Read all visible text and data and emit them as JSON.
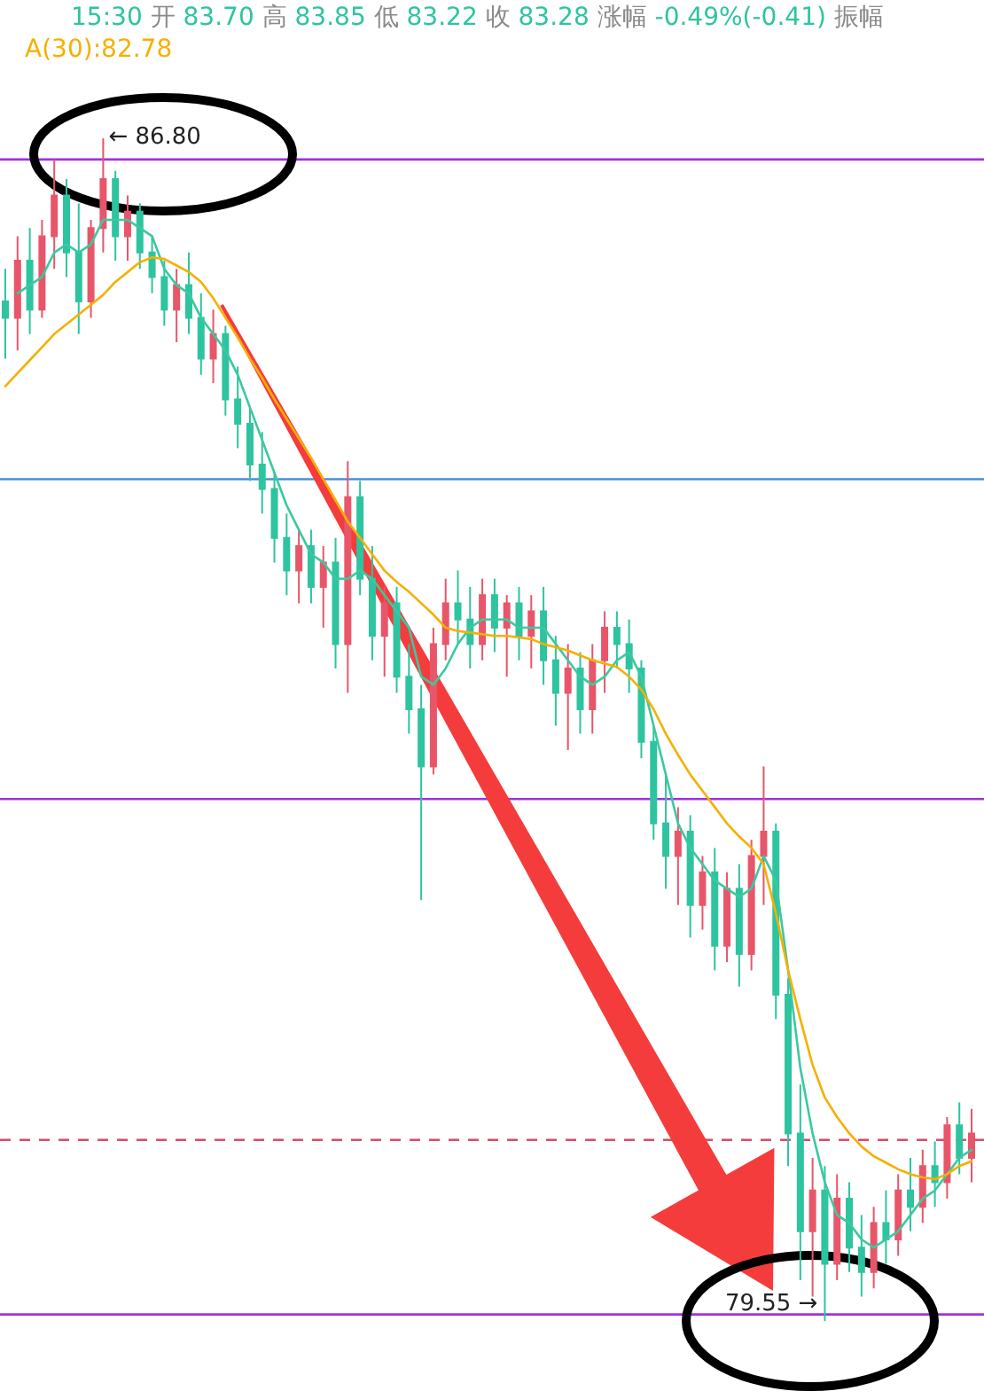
{
  "chart_data": {
    "type": "candlestick",
    "annotations": [
      "15:30 开 83.70 高 83.85 低 83.22 收 83.28 涨幅 -0.49%(-0.41) 振幅",
      "A(30):82.78",
      "← 86.80",
      "79.55 →"
    ],
    "categories": [
      null,
      null,
      null,
      null,
      null,
      null,
      null,
      null,
      null,
      null,
      null,
      null,
      null,
      null,
      null,
      null,
      null,
      null,
      null,
      null,
      null,
      null,
      null,
      null,
      null,
      null,
      null,
      null,
      null,
      null,
      null,
      null,
      null,
      null,
      null,
      null,
      null,
      null,
      null,
      null,
      null,
      null,
      null,
      null,
      null,
      null,
      null,
      null,
      null,
      null,
      null,
      null,
      null,
      null,
      null,
      null,
      null,
      null,
      null,
      null,
      null,
      null,
      null,
      null,
      null,
      null,
      null,
      null,
      null,
      null,
      null,
      null,
      null,
      null,
      null,
      null,
      null,
      null,
      null,
      null
    ],
    "ohlc": [
      [
        85.8,
        86.0,
        85.45,
        85.7
      ],
      [
        85.7,
        86.2,
        85.5,
        86.05
      ],
      [
        86.05,
        86.25,
        85.6,
        85.75
      ],
      [
        85.75,
        86.3,
        85.7,
        86.2
      ],
      [
        86.2,
        86.67,
        86.0,
        86.45
      ],
      [
        86.45,
        86.55,
        85.95,
        86.1
      ],
      [
        86.1,
        86.4,
        85.6,
        85.8
      ],
      [
        85.8,
        86.3,
        85.7,
        86.25
      ],
      [
        86.25,
        86.8,
        86.1,
        86.55
      ],
      [
        86.55,
        86.6,
        86.05,
        86.2
      ],
      [
        86.2,
        86.45,
        86.05,
        86.35
      ],
      [
        86.35,
        86.4,
        86.0,
        86.1
      ],
      [
        86.1,
        86.2,
        85.85,
        85.95
      ],
      [
        85.95,
        86.05,
        85.65,
        85.75
      ],
      [
        85.75,
        86.0,
        85.55,
        85.9
      ],
      [
        85.9,
        86.1,
        85.6,
        85.7
      ],
      [
        85.7,
        85.85,
        85.35,
        85.45
      ],
      [
        85.45,
        85.75,
        85.3,
        85.6
      ],
      [
        85.6,
        85.65,
        85.1,
        85.2
      ],
      [
        85.2,
        85.4,
        84.9,
        85.05
      ],
      [
        85.05,
        85.15,
        84.7,
        84.8
      ],
      [
        84.8,
        85.0,
        84.5,
        84.65
      ],
      [
        84.65,
        84.75,
        84.2,
        84.35
      ],
      [
        84.35,
        84.5,
        84.0,
        84.15
      ],
      [
        84.15,
        84.4,
        83.95,
        84.3
      ],
      [
        84.3,
        84.4,
        83.95,
        84.05
      ],
      [
        84.05,
        84.3,
        83.8,
        84.2
      ],
      [
        84.2,
        84.35,
        83.55,
        83.7
      ],
      [
        83.7,
        84.82,
        83.4,
        84.6
      ],
      [
        84.6,
        84.7,
        84.0,
        84.1
      ],
      [
        84.1,
        84.3,
        83.6,
        83.75
      ],
      [
        83.75,
        84.05,
        83.5,
        83.95
      ],
      [
        83.95,
        84.05,
        83.4,
        83.5
      ],
      [
        83.5,
        83.7,
        83.15,
        83.3
      ],
      [
        83.3,
        83.45,
        82.13,
        82.95
      ],
      [
        82.95,
        83.8,
        82.9,
        83.7
      ],
      [
        83.7,
        84.1,
        83.6,
        83.95
      ],
      [
        83.95,
        84.15,
        83.7,
        83.85
      ],
      [
        83.85,
        84.05,
        83.55,
        83.7
      ],
      [
        83.7,
        84.1,
        83.6,
        84.0
      ],
      [
        84.0,
        84.1,
        83.65,
        83.8
      ],
      [
        83.8,
        84.0,
        83.5,
        83.95
      ],
      [
        83.95,
        84.05,
        83.6,
        83.75
      ],
      [
        83.75,
        84.0,
        83.55,
        83.9
      ],
      [
        83.9,
        84.05,
        83.45,
        83.6
      ],
      [
        83.6,
        83.75,
        83.2,
        83.4
      ],
      [
        83.4,
        83.7,
        83.05,
        83.55
      ],
      [
        83.55,
        83.65,
        83.15,
        83.3
      ],
      [
        83.3,
        83.7,
        83.15,
        83.6
      ],
      [
        83.6,
        83.9,
        83.4,
        83.8
      ],
      [
        83.8,
        83.9,
        83.55,
        83.7
      ],
      [
        83.7,
        83.85,
        83.4,
        83.55
      ],
      [
        83.55,
        83.6,
        83.0,
        83.1
      ],
      [
        83.1,
        83.2,
        82.5,
        82.6
      ],
      [
        82.6,
        82.9,
        82.2,
        82.4
      ],
      [
        82.4,
        82.7,
        82.1,
        82.55
      ],
      [
        82.55,
        82.65,
        81.9,
        82.1
      ],
      [
        82.1,
        82.4,
        81.95,
        82.3
      ],
      [
        82.3,
        82.45,
        81.7,
        81.85
      ],
      [
        81.85,
        82.3,
        81.75,
        82.2
      ],
      [
        82.2,
        82.35,
        81.6,
        81.8
      ],
      [
        81.8,
        82.5,
        81.7,
        82.4
      ],
      [
        82.4,
        82.95,
        82.1,
        82.55
      ],
      [
        82.55,
        82.6,
        81.4,
        81.55
      ],
      [
        81.55,
        81.65,
        80.5,
        80.7
      ],
      [
        80.7,
        81.0,
        79.8,
        80.1
      ],
      [
        80.1,
        80.55,
        79.7,
        80.35
      ],
      [
        80.35,
        80.5,
        79.55,
        79.9
      ],
      [
        79.9,
        80.45,
        79.8,
        80.3
      ],
      [
        80.3,
        80.4,
        79.85,
        80.0
      ],
      [
        80.0,
        80.2,
        79.7,
        79.85
      ],
      [
        79.85,
        80.25,
        79.75,
        80.15
      ],
      [
        80.15,
        80.35,
        79.9,
        80.05
      ],
      [
        80.05,
        80.45,
        79.95,
        80.35
      ],
      [
        80.35,
        80.55,
        80.1,
        80.25
      ],
      [
        80.25,
        80.6,
        80.15,
        80.5
      ],
      [
        80.5,
        80.65,
        80.25,
        80.4
      ],
      [
        80.4,
        80.8,
        80.3,
        80.75
      ],
      [
        80.75,
        80.89,
        80.45,
        80.55
      ],
      [
        80.55,
        80.85,
        80.4,
        80.7
      ]
    ],
    "series": [
      {
        "type": "line",
        "color": "#3cc8a0",
        "values": [
          null,
          85.85,
          85.9,
          85.95,
          86.1,
          86.15,
          86.1,
          86.15,
          86.3,
          86.3,
          86.3,
          86.25,
          86.2,
          86.0,
          85.9,
          85.85,
          85.7,
          85.6,
          85.5,
          85.35,
          85.15,
          84.95,
          84.75,
          84.55,
          84.4,
          84.25,
          84.2,
          84.1,
          84.1,
          84.15,
          84.1,
          84.0,
          83.9,
          83.8,
          83.5,
          83.45,
          83.55,
          83.7,
          83.8,
          83.85,
          83.85,
          83.85,
          83.8,
          83.8,
          83.8,
          83.7,
          83.6,
          83.5,
          83.45,
          83.5,
          83.6,
          83.65,
          83.5,
          83.2,
          82.9,
          82.6,
          82.45,
          82.35,
          82.25,
          82.2,
          82.15,
          82.2,
          82.4,
          82.25,
          81.7,
          81.1,
          80.7,
          80.4,
          80.2,
          80.15,
          80.05,
          80.0,
          80.05,
          80.1,
          80.2,
          80.3,
          80.35,
          80.45,
          80.55,
          80.6
        ]
      },
      {
        "type": "line",
        "color": "#f5b000",
        "values": [
          85.28,
          85.36,
          85.44,
          85.52,
          85.6,
          85.66,
          85.72,
          85.78,
          85.84,
          85.92,
          85.98,
          86.04,
          86.07,
          86.06,
          86.02,
          85.98,
          85.92,
          85.82,
          85.7,
          85.58,
          85.45,
          85.33,
          85.2,
          85.08,
          84.96,
          84.84,
          84.71,
          84.58,
          84.45,
          84.35,
          84.25,
          84.15,
          84.08,
          84.02,
          83.95,
          83.88,
          83.8,
          83.78,
          83.77,
          83.76,
          83.75,
          83.75,
          83.74,
          83.73,
          83.7,
          83.68,
          83.66,
          83.63,
          83.6,
          83.58,
          83.56,
          83.5,
          83.42,
          83.3,
          83.15,
          83.02,
          82.9,
          82.8,
          82.7,
          82.6,
          82.52,
          82.45,
          82.35,
          82.05,
          81.7,
          81.4,
          81.12,
          80.92,
          80.8,
          80.7,
          80.62,
          80.56,
          80.52,
          80.48,
          80.45,
          80.43,
          80.42,
          80.45,
          80.5,
          80.53
        ]
      }
    ],
    "ref_lines": [
      {
        "axis": "y",
        "value": 86.67,
        "color": "#a030e0",
        "line_style": "solid"
      },
      {
        "axis": "y",
        "value": 84.71,
        "color": "#4a8fd8",
        "line_style": "solid"
      },
      {
        "axis": "y",
        "value": 82.75,
        "color": "#a030e0",
        "line_style": "solid"
      },
      {
        "axis": "y",
        "value": 80.66,
        "color": "#d0506a",
        "line_style": "dashed"
      },
      {
        "axis": "y",
        "value": 79.59,
        "color": "#a030e0",
        "line_style": "solid"
      }
    ]
  }
}
